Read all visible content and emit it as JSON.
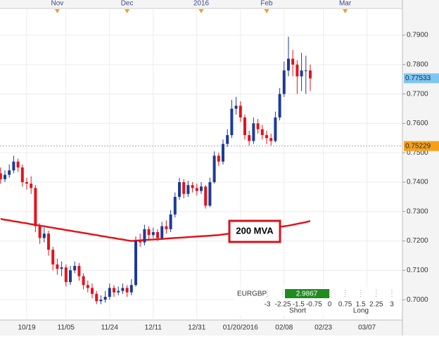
{
  "chart_data": {
    "type": "candlestick",
    "categories": [
      null,
      null,
      null,
      null,
      null,
      null,
      "10/19",
      null,
      null,
      null,
      null,
      null,
      null,
      null,
      null,
      "11/05",
      null,
      null,
      null,
      null,
      null,
      null,
      null,
      null,
      null,
      "11/24",
      null,
      null,
      null,
      null,
      null,
      null,
      null,
      null,
      null,
      "12/11",
      null,
      null,
      null,
      null,
      null,
      null,
      null,
      null,
      null,
      "12/31",
      null,
      null,
      null,
      null,
      null,
      null,
      null,
      null,
      null,
      "01/20/2016",
      null,
      null,
      null,
      null,
      null,
      null,
      null,
      null,
      null,
      "02/08",
      null,
      null,
      null,
      null,
      null,
      null,
      null,
      null,
      "02/23",
      null,
      null,
      null,
      null,
      null,
      null,
      null,
      null,
      null,
      "03/07",
      null,
      null,
      null,
      null,
      null,
      null,
      null
    ],
    "top_categories": [
      null,
      null,
      null,
      null,
      null,
      null,
      null,
      null,
      null,
      null,
      null,
      null,
      null,
      "Nov",
      null,
      null,
      null,
      null,
      null,
      null,
      null,
      null,
      null,
      null,
      null,
      null,
      null,
      null,
      null,
      "Dec",
      null,
      null,
      null,
      null,
      null,
      null,
      null,
      null,
      null,
      null,
      null,
      null,
      null,
      null,
      null,
      null,
      "2016",
      null,
      null,
      null,
      null,
      null,
      null,
      null,
      null,
      null,
      null,
      null,
      null,
      null,
      null,
      "Feb",
      null,
      null,
      null,
      null,
      null,
      null,
      null,
      null,
      null,
      null,
      null,
      null,
      null,
      null,
      null,
      null,
      null,
      "Mar",
      null,
      null,
      null,
      null,
      null,
      null,
      null,
      null,
      null,
      null,
      null,
      null
    ],
    "open": [
      0.743,
      0.741,
      0.7425,
      0.744,
      0.747,
      0.745,
      0.74,
      0.7395,
      0.738,
      0.725,
      0.721,
      0.7225,
      0.717,
      0.712,
      0.7105,
      0.711,
      0.706,
      0.71,
      0.7115,
      0.708,
      0.705,
      0.704,
      0.702,
      0.6995,
      0.7,
      0.701,
      0.704,
      0.7025,
      0.703,
      0.704,
      0.7025,
      0.705,
      0.72,
      0.7195,
      0.724,
      0.722,
      0.723,
      0.721,
      0.725,
      0.724,
      0.729,
      0.735,
      0.74,
      0.736,
      0.739,
      0.738,
      0.737,
      0.7385,
      0.732,
      0.74,
      0.749,
      0.747,
      0.753,
      0.756,
      0.765,
      0.766,
      0.762,
      0.756,
      0.754,
      0.76,
      0.758,
      0.756,
      0.755,
      0.754,
      0.762,
      0.77,
      0.778,
      0.782,
      0.78,
      0.776,
      0.778,
      0.778,
      null,
      null,
      null,
      null,
      null,
      null,
      null,
      null,
      null,
      null,
      null,
      null,
      null,
      null,
      null,
      null,
      null,
      null,
      null,
      null
    ],
    "high": [
      0.745,
      0.744,
      0.746,
      0.749,
      0.748,
      0.746,
      0.7415,
      0.742,
      0.739,
      0.726,
      0.7245,
      0.7235,
      0.718,
      0.714,
      0.713,
      0.712,
      0.7115,
      0.713,
      0.7125,
      0.709,
      0.7065,
      0.7055,
      0.703,
      0.7015,
      0.703,
      0.7055,
      0.705,
      0.7045,
      0.7055,
      0.705,
      0.707,
      0.7215,
      0.7225,
      0.7255,
      0.725,
      0.7245,
      0.724,
      0.7265,
      0.727,
      0.7305,
      0.7365,
      0.7415,
      0.741,
      0.7405,
      0.74,
      0.7395,
      0.74,
      0.739,
      0.7415,
      0.7505,
      0.75,
      0.7545,
      0.758,
      0.768,
      0.769,
      0.7675,
      0.763,
      0.7575,
      0.762,
      0.7615,
      0.7595,
      0.7575,
      0.7565,
      0.764,
      0.772,
      0.781,
      0.7895,
      0.785,
      0.7815,
      0.784,
      0.783,
      0.78,
      null,
      null,
      null,
      null,
      null,
      null,
      null,
      null,
      null,
      null,
      null,
      null,
      null,
      null,
      null,
      null,
      null,
      null,
      null,
      null
    ],
    "low": [
      0.7395,
      0.74,
      0.7415,
      0.743,
      0.7435,
      0.7385,
      0.7375,
      0.736,
      0.723,
      0.719,
      0.7195,
      0.715,
      0.71,
      0.7085,
      0.708,
      0.7045,
      0.705,
      0.709,
      0.7065,
      0.7035,
      0.7025,
      0.7005,
      0.6985,
      0.6985,
      0.699,
      0.7,
      0.701,
      0.7015,
      0.702,
      0.701,
      0.7015,
      0.7045,
      0.718,
      0.7185,
      0.7205,
      0.721,
      0.72,
      0.7205,
      0.7225,
      0.723,
      0.728,
      0.734,
      0.7345,
      0.735,
      0.7365,
      0.7355,
      0.736,
      0.731,
      0.7315,
      0.7395,
      0.7455,
      0.746,
      0.752,
      0.755,
      0.763,
      0.7605,
      0.7545,
      0.7525,
      0.753,
      0.7565,
      0.7545,
      0.753,
      0.7525,
      0.7535,
      0.761,
      0.769,
      0.776,
      0.776,
      0.77,
      0.771,
      0.77,
      0.771,
      null,
      null,
      null,
      null,
      null,
      null,
      null,
      null,
      null,
      null,
      null,
      null,
      null,
      null,
      null,
      null,
      null,
      null,
      null,
      null
    ],
    "close": [
      0.741,
      0.7425,
      0.744,
      0.747,
      0.745,
      0.74,
      0.7395,
      0.738,
      0.725,
      0.721,
      0.7225,
      0.717,
      0.712,
      0.7105,
      0.711,
      0.706,
      0.71,
      0.7115,
      0.708,
      0.705,
      0.704,
      0.702,
      0.6995,
      0.7,
      0.701,
      0.704,
      0.7025,
      0.703,
      0.704,
      0.7025,
      0.705,
      0.72,
      0.7195,
      0.724,
      0.722,
      0.723,
      0.721,
      0.725,
      0.724,
      0.729,
      0.735,
      0.74,
      0.736,
      0.739,
      0.738,
      0.737,
      0.7385,
      0.732,
      0.74,
      0.749,
      0.747,
      0.753,
      0.756,
      0.765,
      0.766,
      0.762,
      0.756,
      0.754,
      0.76,
      0.758,
      0.756,
      0.755,
      0.754,
      0.762,
      0.77,
      0.778,
      0.782,
      0.78,
      0.776,
      0.778,
      0.778,
      0.7753,
      null,
      null,
      null,
      null,
      null,
      null,
      null,
      null,
      null,
      null,
      null,
      null,
      null,
      null,
      null,
      null,
      null,
      null,
      null,
      null
    ],
    "up_color": "#1d3a96",
    "down_color": "#e2141c",
    "ma": {
      "label": "200 MVA",
      "color": "#e3141b",
      "values": [
        0.7275,
        0.7272,
        0.727,
        0.7267,
        0.7265,
        0.7262,
        0.726,
        0.7257,
        0.7255,
        0.7252,
        0.725,
        0.7247,
        0.7245,
        0.7242,
        0.724,
        0.7237,
        0.7235,
        0.7232,
        0.723,
        0.7227,
        0.7225,
        0.7222,
        0.722,
        0.7217,
        0.7215,
        0.7212,
        0.721,
        0.7207,
        0.7205,
        0.7202,
        0.72,
        0.7201,
        0.7202,
        0.7203,
        0.7204,
        0.7205,
        0.7206,
        0.7207,
        0.7208,
        0.7209,
        0.721,
        0.7211,
        0.7212,
        0.7213,
        0.7214,
        0.7215,
        0.7216,
        0.7217,
        0.7218,
        0.7219,
        0.722,
        0.7222,
        0.7224,
        0.7226,
        0.7228,
        0.723,
        0.7232,
        0.7234,
        0.7236,
        0.7238,
        0.724,
        0.7242,
        0.7244,
        0.7246,
        0.7248,
        0.725,
        0.7252,
        0.7255,
        0.7258,
        0.7261,
        0.7264,
        0.7268,
        null,
        null,
        null,
        null,
        null,
        null,
        null,
        null,
        null,
        null,
        null,
        null,
        null,
        null,
        null,
        null,
        null,
        null,
        null,
        null
      ]
    },
    "ylim": [
      0.6931,
      0.7991
    ],
    "yticks": [
      {
        "value": 0.7,
        "label": "0.7000"
      },
      {
        "value": 0.71,
        "label": "0.7100"
      },
      {
        "value": 0.72,
        "label": "0.7200"
      },
      {
        "value": 0.73,
        "label": "0.7300"
      },
      {
        "value": 0.74,
        "label": "0.7400"
      },
      {
        "value": 0.75,
        "label": "0.7500"
      },
      {
        "value": 0.76,
        "label": "0.7600"
      },
      {
        "value": 0.77,
        "label": "0.7700"
      },
      {
        "value": 0.78,
        "label": "0.7800"
      },
      {
        "value": 0.79,
        "label": "0.7900"
      }
    ],
    "grid": true,
    "price_markers": [
      {
        "value": 0.77533,
        "color": "#7fc6f0"
      },
      {
        "value": 0.75229,
        "color": "#f6a01a"
      }
    ],
    "sentiment": {
      "symbol": "EURGBP",
      "value": 2.9867,
      "color": "#1e8c1e",
      "xlim": [
        -3,
        3
      ],
      "ticks": [
        -3,
        -2.25,
        -1.5,
        -0.75,
        0,
        0.75,
        1.5,
        2.25,
        3
      ],
      "short": "Short",
      "long": "Long"
    }
  }
}
